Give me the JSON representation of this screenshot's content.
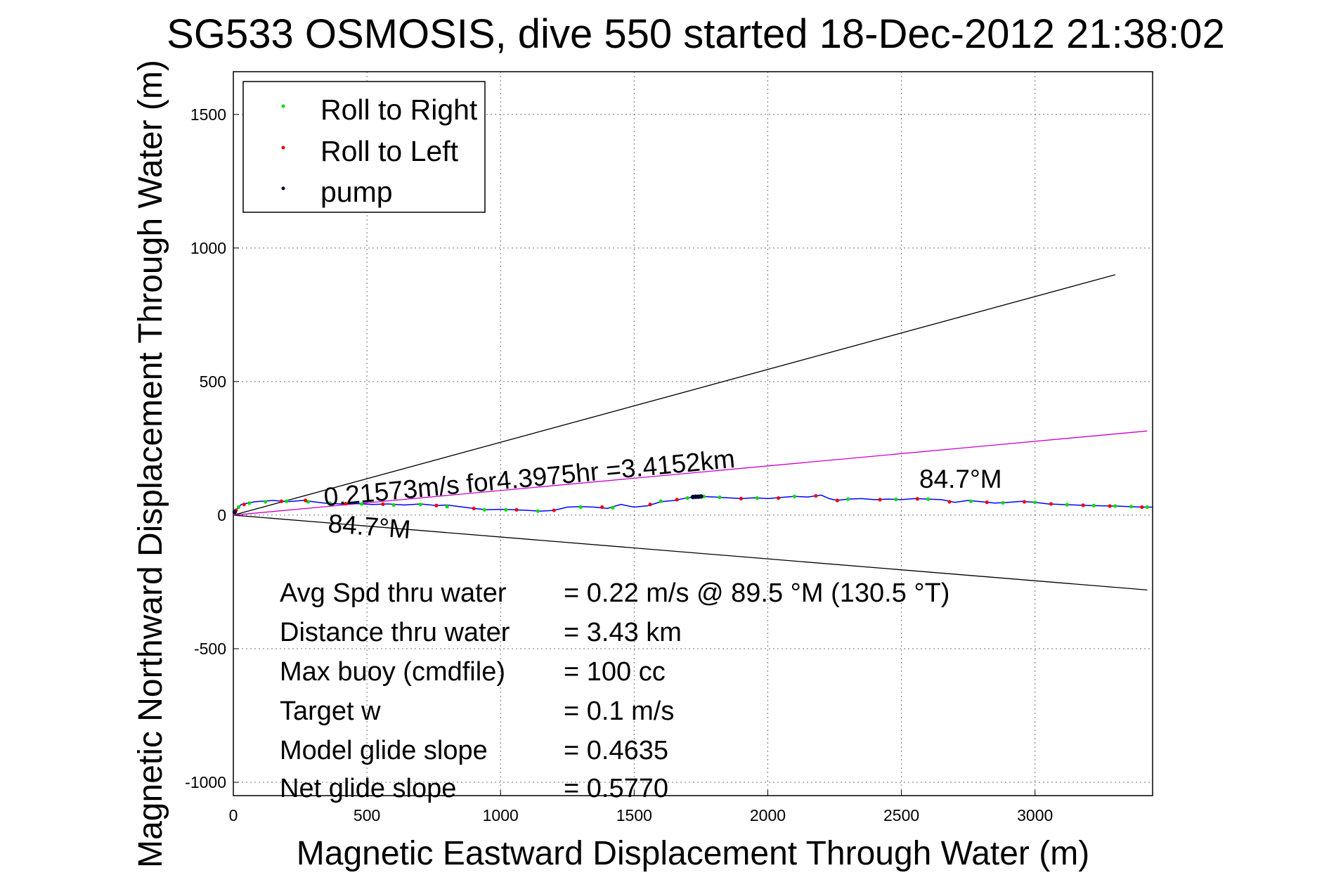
{
  "chart_data": {
    "type": "scatter",
    "title": "SG533 OSMOSIS, dive 550 started 18-Dec-2012 21:38:02",
    "xlabel": "Magnetic Eastward Displacement Through Water (m)",
    "ylabel": "Magnetic Northward Displacement Through Water (m)",
    "xlim": [
      0,
      3440
    ],
    "ylim": [
      -1050,
      1660
    ],
    "x_ticks": [
      0,
      500,
      1000,
      1500,
      2000,
      2500,
      3000
    ],
    "y_ticks": [
      -1000,
      -500,
      0,
      500,
      1000,
      1500
    ],
    "grid": true,
    "legend_placement": "top-left",
    "legend": [
      {
        "label": "Roll to Right",
        "color": "#00dd00"
      },
      {
        "label": "Roll to Left",
        "color": "#ee0000"
      },
      {
        "label": "pump",
        "color": "#000033"
      }
    ],
    "track_color": "#0000ff",
    "track": [
      [
        0,
        10
      ],
      [
        30,
        40
      ],
      [
        80,
        50
      ],
      [
        150,
        55
      ],
      [
        200,
        50
      ],
      [
        260,
        55
      ],
      [
        300,
        50
      ],
      [
        340,
        45
      ],
      [
        400,
        42
      ],
      [
        450,
        44
      ],
      [
        520,
        40
      ],
      [
        580,
        42
      ],
      [
        640,
        38
      ],
      [
        700,
        42
      ],
      [
        760,
        36
      ],
      [
        800,
        38
      ],
      [
        860,
        30
      ],
      [
        900,
        25
      ],
      [
        950,
        20
      ],
      [
        1000,
        22
      ],
      [
        1050,
        20
      ],
      [
        1100,
        18
      ],
      [
        1150,
        15
      ],
      [
        1200,
        18
      ],
      [
        1250,
        30
      ],
      [
        1300,
        32
      ],
      [
        1350,
        30
      ],
      [
        1400,
        25
      ],
      [
        1450,
        40
      ],
      [
        1500,
        30
      ],
      [
        1550,
        35
      ],
      [
        1600,
        50
      ],
      [
        1650,
        55
      ],
      [
        1700,
        65
      ],
      [
        1720,
        68
      ],
      [
        1750,
        70
      ],
      [
        1800,
        68
      ],
      [
        1850,
        65
      ],
      [
        1900,
        62
      ],
      [
        1950,
        65
      ],
      [
        2000,
        62
      ],
      [
        2050,
        66
      ],
      [
        2100,
        70
      ],
      [
        2150,
        68
      ],
      [
        2200,
        75
      ],
      [
        2230,
        62
      ],
      [
        2260,
        55
      ],
      [
        2300,
        60
      ],
      [
        2350,
        62
      ],
      [
        2400,
        58
      ],
      [
        2450,
        60
      ],
      [
        2500,
        58
      ],
      [
        2550,
        62
      ],
      [
        2600,
        60
      ],
      [
        2650,
        58
      ],
      [
        2700,
        48
      ],
      [
        2750,
        55
      ],
      [
        2800,
        50
      ],
      [
        2850,
        45
      ],
      [
        2900,
        48
      ],
      [
        2950,
        52
      ],
      [
        3000,
        48
      ],
      [
        3050,
        42
      ],
      [
        3100,
        40
      ],
      [
        3150,
        38
      ],
      [
        3200,
        36
      ],
      [
        3250,
        35
      ],
      [
        3300,
        34
      ],
      [
        3350,
        32
      ],
      [
        3400,
        30
      ],
      [
        3440,
        30
      ]
    ],
    "roll_right": [
      [
        20,
        30
      ],
      [
        60,
        45
      ],
      [
        120,
        50
      ],
      [
        200,
        52
      ],
      [
        280,
        50
      ],
      [
        360,
        45
      ],
      [
        480,
        42
      ],
      [
        600,
        38
      ],
      [
        700,
        40
      ],
      [
        800,
        32
      ],
      [
        940,
        20
      ],
      [
        1020,
        20
      ],
      [
        1140,
        15
      ],
      [
        1300,
        30
      ],
      [
        1420,
        28
      ],
      [
        1600,
        52
      ],
      [
        1700,
        64
      ],
      [
        1760,
        70
      ],
      [
        1820,
        67
      ],
      [
        1960,
        64
      ],
      [
        2100,
        70
      ],
      [
        2300,
        60
      ],
      [
        2480,
        59
      ],
      [
        2600,
        60
      ],
      [
        2760,
        52
      ],
      [
        2880,
        46
      ],
      [
        3000,
        48
      ],
      [
        3120,
        39
      ],
      [
        3220,
        36
      ],
      [
        3300,
        34
      ],
      [
        3360,
        32
      ],
      [
        3420,
        30
      ]
    ],
    "roll_left": [
      [
        10,
        18
      ],
      [
        40,
        40
      ],
      [
        180,
        52
      ],
      [
        270,
        55
      ],
      [
        420,
        43
      ],
      [
        560,
        41
      ],
      [
        760,
        36
      ],
      [
        900,
        25
      ],
      [
        1060,
        20
      ],
      [
        1200,
        18
      ],
      [
        1380,
        30
      ],
      [
        1560,
        40
      ],
      [
        1660,
        58
      ],
      [
        1900,
        62
      ],
      [
        2040,
        64
      ],
      [
        2180,
        72
      ],
      [
        2260,
        55
      ],
      [
        2420,
        58
      ],
      [
        2560,
        61
      ],
      [
        2680,
        50
      ],
      [
        2820,
        48
      ],
      [
        2960,
        50
      ],
      [
        3060,
        42
      ],
      [
        3180,
        37
      ],
      [
        3280,
        34
      ],
      [
        3400,
        30
      ]
    ],
    "pump": [
      [
        5,
        12
      ],
      [
        1720,
        68
      ],
      [
        1730,
        69
      ],
      [
        1740,
        69
      ],
      [
        1750,
        70
      ]
    ],
    "heading_lines": [
      {
        "color": "#000000",
        "x": [
          0,
          3300
        ],
        "y": [
          0,
          900
        ]
      },
      {
        "color": "#000000",
        "x": [
          0,
          3420
        ],
        "y": [
          0,
          -280
        ]
      },
      {
        "color": "#cc00cc",
        "x": [
          0,
          3420
        ],
        "y": [
          0,
          315
        ]
      }
    ],
    "annotations": {
      "speed_label": "0.21573m/s for4.3975hr =3.4152km",
      "heading_label_1": "84.7°M",
      "heading_label_2": "84.7°M"
    },
    "stats": [
      {
        "label": "Avg Spd thru water",
        "value": "=  0.22 m/s @  89.5 °M (130.5 °T)"
      },
      {
        "label": "Distance thru water",
        "value": "=  3.43 km"
      },
      {
        "label": "Max buoy (cmdfile)",
        "value": "= 100 cc"
      },
      {
        "label": "Target w",
        "value": "= 0.1 m/s"
      },
      {
        "label": "Model glide slope",
        "value": "= 0.4635"
      },
      {
        "label": "Net glide slope",
        "value": "= 0.5770"
      }
    ]
  }
}
